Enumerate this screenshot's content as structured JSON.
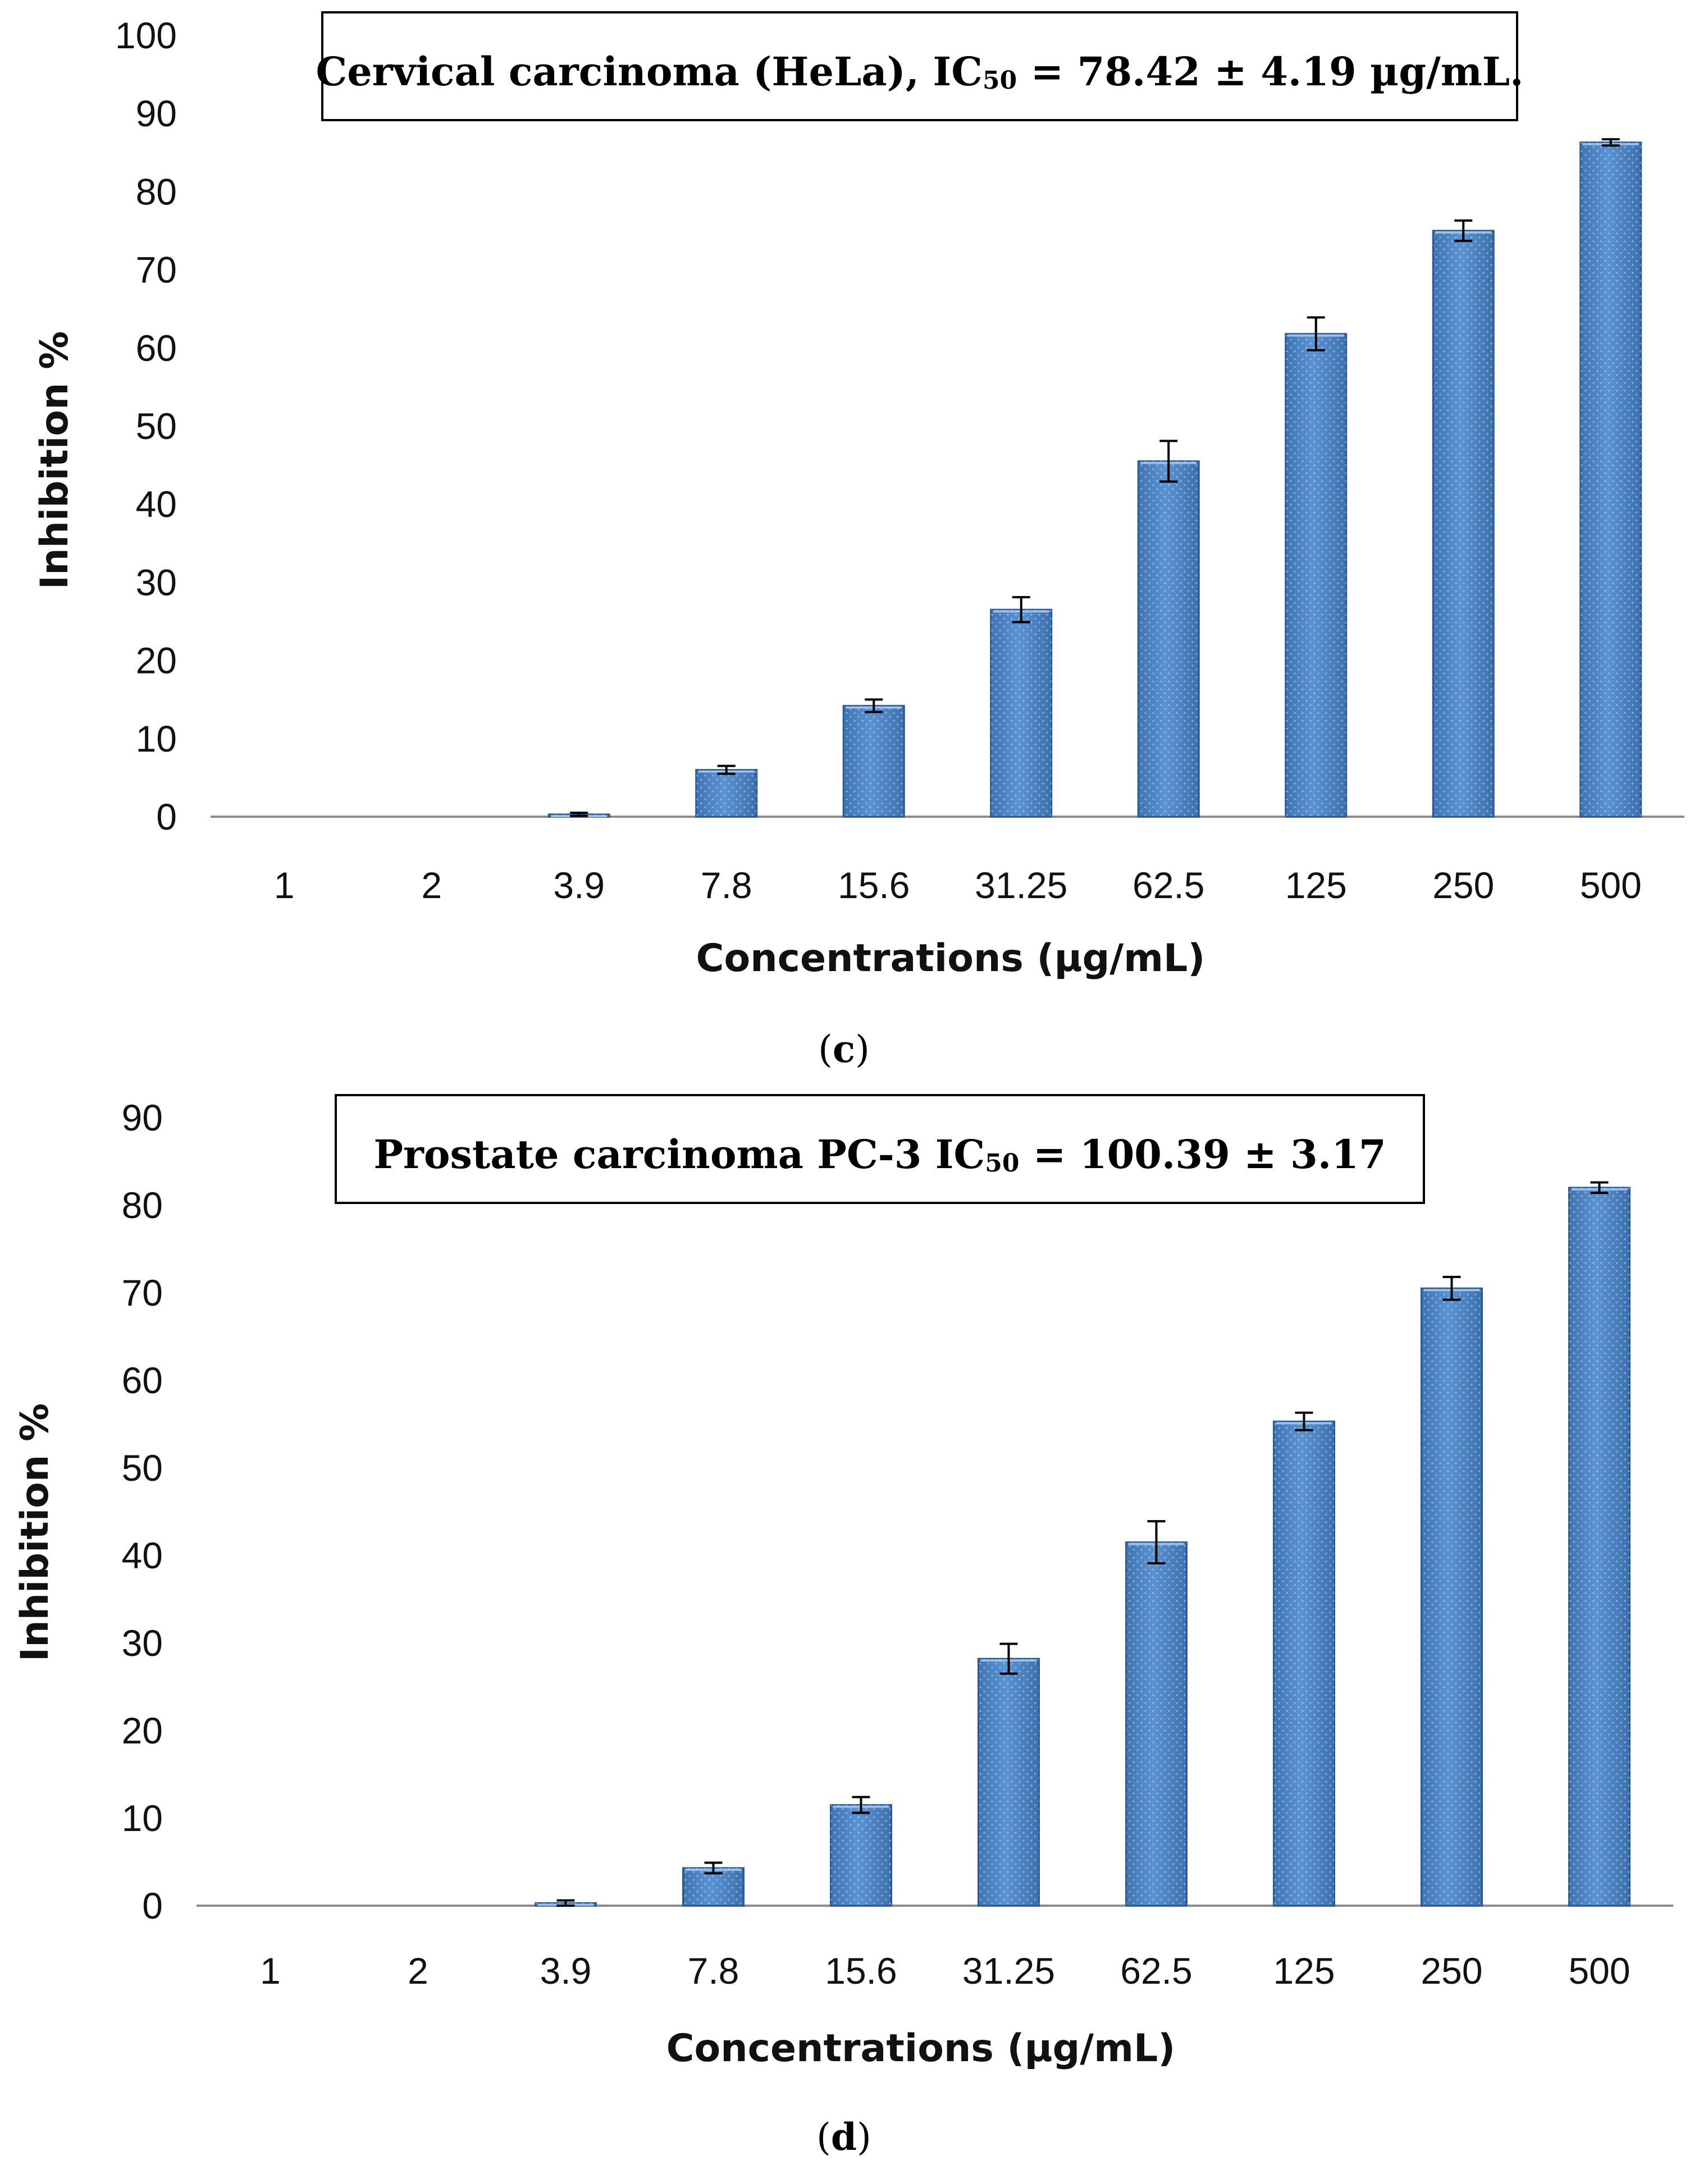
{
  "colors": {
    "bar_fill": "#4f86c6",
    "bar_edge": "#2a5a94",
    "bar_highlight": "#9cc1ea",
    "axis": "#8c8c8c",
    "text": "#111111"
  },
  "chart_data": [
    {
      "type": "bar",
      "panel_label": "c",
      "title": {
        "prefix": "Cervical carcinoma (HeLa), IC",
        "subscript": "50",
        "suffix": " = 78.42 ± 4.19 µg/mL."
      },
      "xlabel": "Concentrations (µg/mL)",
      "ylabel": "Inhibition %",
      "ylim": [
        0,
        100
      ],
      "ytick_step": 10,
      "categories": [
        "1",
        "2",
        "3.9",
        "7.8",
        "15.6",
        "31.25",
        "62.5",
        "125",
        "250",
        "500"
      ],
      "values": [
        0,
        0,
        0.3,
        6,
        14.2,
        26.5,
        45.5,
        61.8,
        75,
        86.3
      ],
      "errors": [
        0,
        0,
        0.2,
        0.5,
        0.8,
        1.6,
        2.6,
        2.1,
        1.3,
        0.4
      ]
    },
    {
      "type": "bar",
      "panel_label": "d",
      "title": {
        "prefix": "Prostate   carcinoma   PC-3   IC",
        "subscript": "50",
        "suffix": "   =   100.39   ±   3.17"
      },
      "xlabel": "Concentrations (µg/mL)",
      "ylabel": "Inhibition %",
      "ylim": [
        0,
        90
      ],
      "ytick_step": 10,
      "categories": [
        "1",
        "2",
        "3.9",
        "7.8",
        "15.6",
        "31.25",
        "62.5",
        "125",
        "250",
        "500"
      ],
      "values": [
        0,
        0,
        0.3,
        4.3,
        11.5,
        28.2,
        41.5,
        55.3,
        70.5,
        82
      ],
      "errors": [
        0,
        0,
        0.3,
        0.6,
        0.9,
        1.7,
        2.4,
        1.0,
        1.3,
        0.6
      ]
    }
  ]
}
